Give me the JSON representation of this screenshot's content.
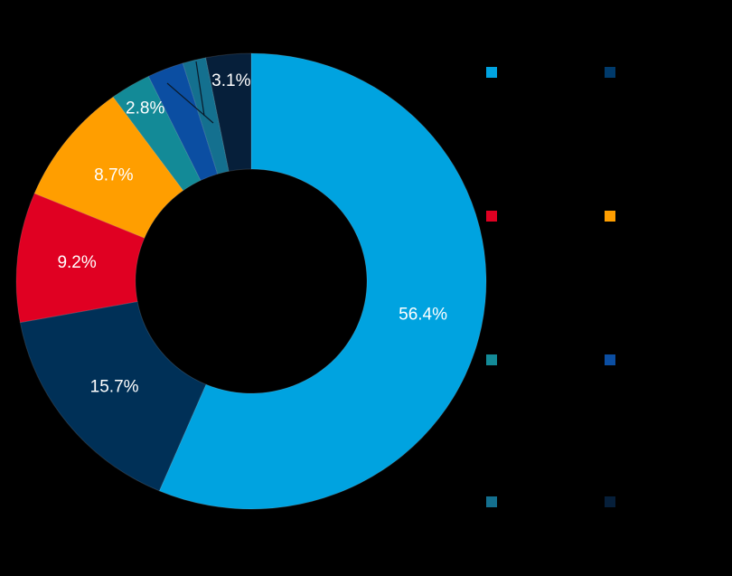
{
  "chart_data": {
    "type": "pie",
    "subtype": "donut",
    "title": "",
    "start_angle_deg": 0,
    "direction": "clockwise",
    "slices": [
      {
        "label": "",
        "value": 56.4,
        "display": "56.4%",
        "color": "#00A3E0"
      },
      {
        "label": "",
        "value": 15.7,
        "display": "15.7%",
        "color": "#003057"
      },
      {
        "label": "",
        "value": 9.2,
        "display": "9.2%",
        "color": "#E00022"
      },
      {
        "label": "",
        "value": 8.7,
        "display": "8.7%",
        "color": "#FF9E00"
      },
      {
        "label": "",
        "value": 2.8,
        "display": "2.8%",
        "color": "#138A97"
      },
      {
        "label": "",
        "value": 2.5,
        "display": "",
        "color": "#0B4EA2"
      },
      {
        "label": "",
        "value": 1.6,
        "display": "",
        "color": "#14708F"
      },
      {
        "label": "",
        "value": 3.1,
        "display": "3.1%",
        "color": "#061F3A"
      }
    ],
    "legend": {
      "position": "right",
      "columns": 2,
      "entries": [
        {
          "color": "#00A3E0",
          "label": ""
        },
        {
          "color": "#003A6B",
          "label": ""
        },
        {
          "color": "#E00022",
          "label": ""
        },
        {
          "color": "#FF9E00",
          "label": ""
        },
        {
          "color": "#138A97",
          "label": ""
        },
        {
          "color": "#0B4EA2",
          "label": ""
        },
        {
          "color": "#14708F",
          "label": ""
        },
        {
          "color": "#061F3A",
          "label": ""
        }
      ]
    }
  }
}
